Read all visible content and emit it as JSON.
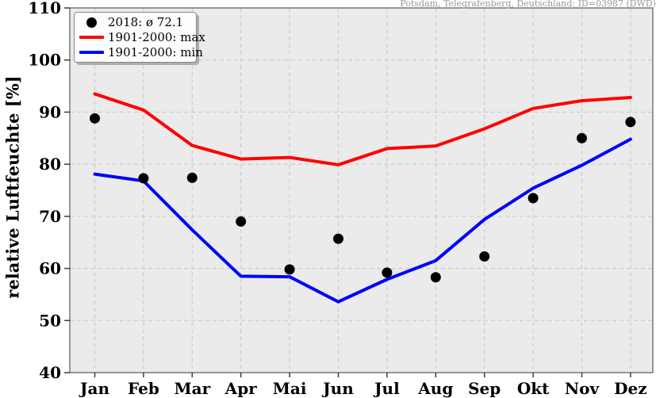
{
  "attribution": "Potsdam, Telegrafenberg, Deutschland: ID=03987 (DWD)",
  "ylabel": "relative Luftfeuchte [%]",
  "legend": {
    "avg_label": "2018: ø 72.1",
    "max_label": "1901-2000: max",
    "min_label": "1901-2000: min"
  },
  "colors": {
    "points": "#000000",
    "max_line": "#ff0000",
    "min_line": "#0000ff",
    "plot_background": "#ebebeb",
    "grid": "#c6c6c6",
    "spine": "#3a3a3a",
    "tick_text": "#000000",
    "attribution_text": "#999999"
  },
  "chart_data": {
    "type": "line",
    "title": "",
    "xlabel": "",
    "ylabel": "relative Luftfeuchte [%]",
    "categories": [
      "Jan",
      "Feb",
      "Mar",
      "Apr",
      "Mai",
      "Jun",
      "Jul",
      "Aug",
      "Sep",
      "Okt",
      "Nov",
      "Dez"
    ],
    "series": [
      {
        "name": "2018: ø 72.1",
        "style": "scatter",
        "color": "#000000",
        "values": [
          88.8,
          77.3,
          77.4,
          69.0,
          59.8,
          65.7,
          59.2,
          58.3,
          62.3,
          73.5,
          85.0,
          88.1
        ]
      },
      {
        "name": "1901-2000: max",
        "style": "line",
        "color": "#ff0000",
        "values": [
          93.5,
          90.4,
          83.6,
          81.0,
          81.3,
          79.9,
          83.0,
          83.5,
          86.8,
          90.7,
          92.2,
          92.8
        ]
      },
      {
        "name": "1901-2000: min",
        "style": "line",
        "color": "#0000ff",
        "values": [
          78.1,
          76.8,
          67.4,
          58.5,
          58.4,
          53.6,
          57.9,
          61.5,
          69.4,
          75.4,
          79.8,
          84.8
        ]
      }
    ],
    "ylim": [
      40,
      110
    ],
    "yticks": [
      40,
      50,
      60,
      70,
      80,
      90,
      100,
      110
    ],
    "grid": true,
    "grid_style": "dashed",
    "legend_position": "upper left"
  }
}
